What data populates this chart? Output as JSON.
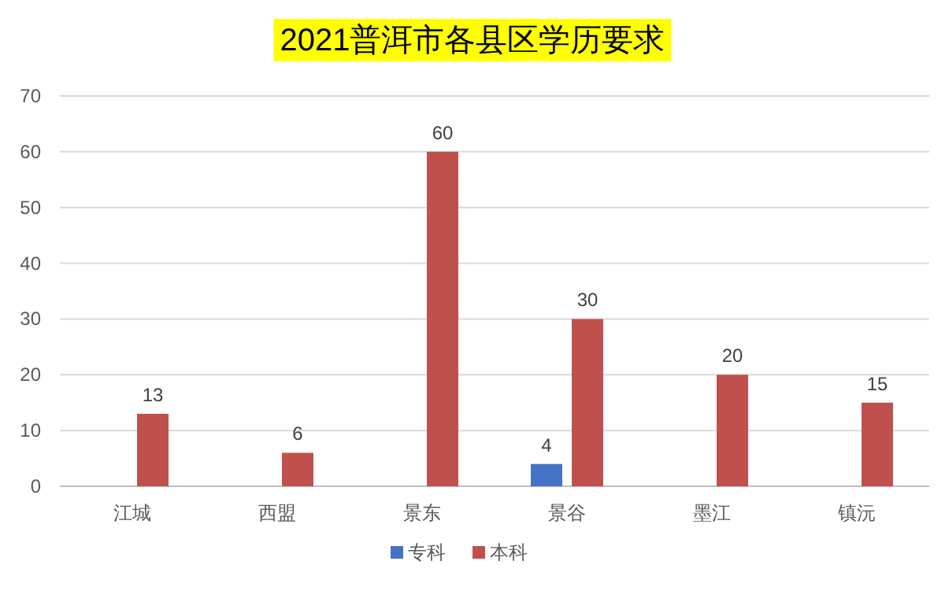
{
  "chart_data": {
    "type": "bar",
    "title": "2021普洱市各县区学历要求",
    "categories": [
      "江城",
      "西盟",
      "景东",
      "景谷",
      "墨江",
      "镇沅"
    ],
    "series": [
      {
        "name": "专科",
        "color": "#4472c4",
        "values": [
          null,
          null,
          null,
          4,
          null,
          null
        ]
      },
      {
        "name": "本科",
        "color": "#c0504d",
        "values": [
          13,
          6,
          60,
          30,
          20,
          15
        ]
      }
    ],
    "ylim": [
      0,
      70
    ],
    "yticks": [
      0,
      10,
      20,
      30,
      40,
      50,
      60,
      70
    ],
    "grid": "y",
    "legend": "bottom",
    "data_labels": true
  }
}
